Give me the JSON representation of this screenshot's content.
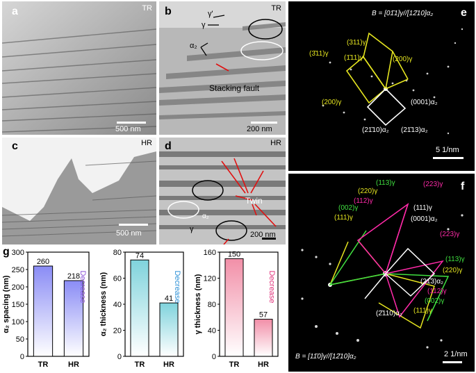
{
  "panels": {
    "a": {
      "label": "a",
      "tag": "TR",
      "scale": "500 nm"
    },
    "b": {
      "label": "b",
      "tag": "TR",
      "scale": "200 nm",
      "ann_gamma_prime": "γ'",
      "ann_gamma": "γ",
      "ann_alpha2": "α₂",
      "ann_sf": "Stacking fault"
    },
    "c": {
      "label": "c",
      "tag": "HR",
      "scale": "500 nm"
    },
    "d": {
      "label": "d",
      "tag": "HR",
      "scale": "200 nm",
      "ann_twin": "Twin",
      "ann_alpha2": "α₂",
      "ann_gamma": "γ"
    },
    "e": {
      "label": "e",
      "zone": "B = [01̄1]γ//[12̄10]α₂",
      "scale": "5 1/nm",
      "spots": {
        "s311a": "(311)γ",
        "s311b": "(3̄11)γ",
        "s111": "(1̄11)γ",
        "s200a": "(200)γ",
        "s200b": "(200)γ",
        "s0001": "(0001)α₂",
        "s2110": "(21̄10)α₂",
        "s2113": "(21̄13)α₂"
      }
    },
    "f": {
      "label": "f",
      "zone": "B = [11̄0]γ//[12̄10]α₂",
      "scale": "2 1/nm",
      "spots": {
        "a": "(113)γ",
        "b": "(220)γ",
        "c": "(112)γ",
        "d": "(002)γ",
        "e": "(111)γ",
        "f": "(223)γ",
        "g": "(111)γ",
        "h": "(0001)α₂",
        "i": "(223)γ",
        "j": "(113)γ",
        "k": "(220)γ",
        "l": "(21̄3)α₂",
        "m": "(112)γ",
        "n": "(002)γ",
        "o": "(111)γ",
        "p": "(2̄110)α₂"
      }
    },
    "g": {
      "label": "g"
    }
  },
  "chart_data": [
    {
      "type": "bar",
      "categories": [
        "TR",
        "HR"
      ],
      "values": [
        260,
        218
      ],
      "ylabel": "α₂ spacing (nm)",
      "ylim": [
        0,
        300
      ],
      "yticks": [
        0,
        50,
        100,
        150,
        200,
        250,
        300
      ],
      "annotation": "Decrease",
      "color": "#8a8cf5",
      "annotation_color": "#8a4fd6"
    },
    {
      "type": "bar",
      "categories": [
        "TR",
        "HR"
      ],
      "values": [
        74,
        41
      ],
      "ylabel": "α₂ thickness (nm)",
      "ylim": [
        0,
        80
      ],
      "yticks": [
        0,
        20,
        40,
        60,
        80
      ],
      "annotation": "Decrease",
      "color": "#7fd3dc",
      "annotation_color": "#2a8fd6"
    },
    {
      "type": "bar",
      "categories": [
        "TR",
        "HR"
      ],
      "values": [
        150,
        57
      ],
      "ylabel": "γ thickness (nm)",
      "ylim": [
        0,
        160
      ],
      "yticks": [
        0,
        40,
        80,
        120,
        160
      ],
      "annotation": "Decrease",
      "color": "#f28fa8",
      "annotation_color": "#e0307a"
    }
  ]
}
